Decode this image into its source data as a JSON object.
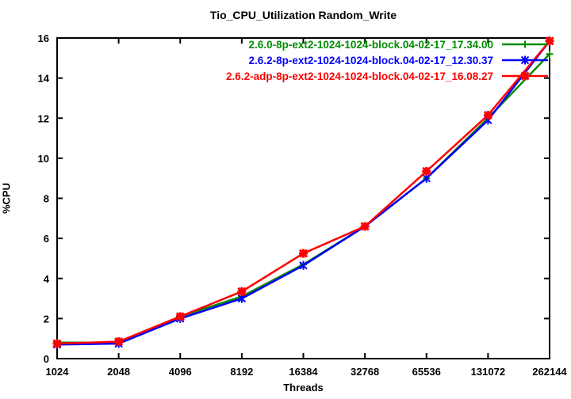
{
  "chart_data": {
    "type": "line",
    "title": "Tio_CPU_Utilization Random_Write",
    "xlabel": "Threads",
    "ylabel": "%CPU",
    "categories": [
      "1024",
      "2048",
      "4096",
      "8192",
      "16384",
      "32768",
      "65536",
      "131072",
      "262144"
    ],
    "x_scale": "log2-evenly-spaced",
    "ylim": [
      0,
      16
    ],
    "yticks": [
      0,
      2,
      4,
      6,
      8,
      10,
      12,
      14,
      16
    ],
    "grid": false,
    "legend_position": "top-right-inside",
    "series": [
      {
        "name": "2.6.0-8p-ext2-1024-1024-block.04-02-17_17.34.00",
        "color": "#008c00",
        "marker": "plus",
        "values": [
          0.8,
          0.8,
          2.1,
          3.1,
          4.7,
          6.6,
          9.0,
          12.0,
          15.2
        ]
      },
      {
        "name": "2.6.2-8p-ext2-1024-1024-block.04-02-17_12.30.37",
        "color": "#0000ff",
        "marker": "asterisk",
        "values": [
          0.7,
          0.75,
          2.0,
          3.0,
          4.65,
          6.6,
          9.0,
          11.9,
          15.85
        ]
      },
      {
        "name": "2.6.2-adp-8p-ext2-1024-1024-block.04-02-17_16.08.27",
        "color": "#ff0000",
        "marker": "star",
        "values": [
          0.75,
          0.85,
          2.1,
          3.35,
          5.25,
          6.6,
          9.35,
          12.15,
          15.85
        ]
      }
    ]
  }
}
